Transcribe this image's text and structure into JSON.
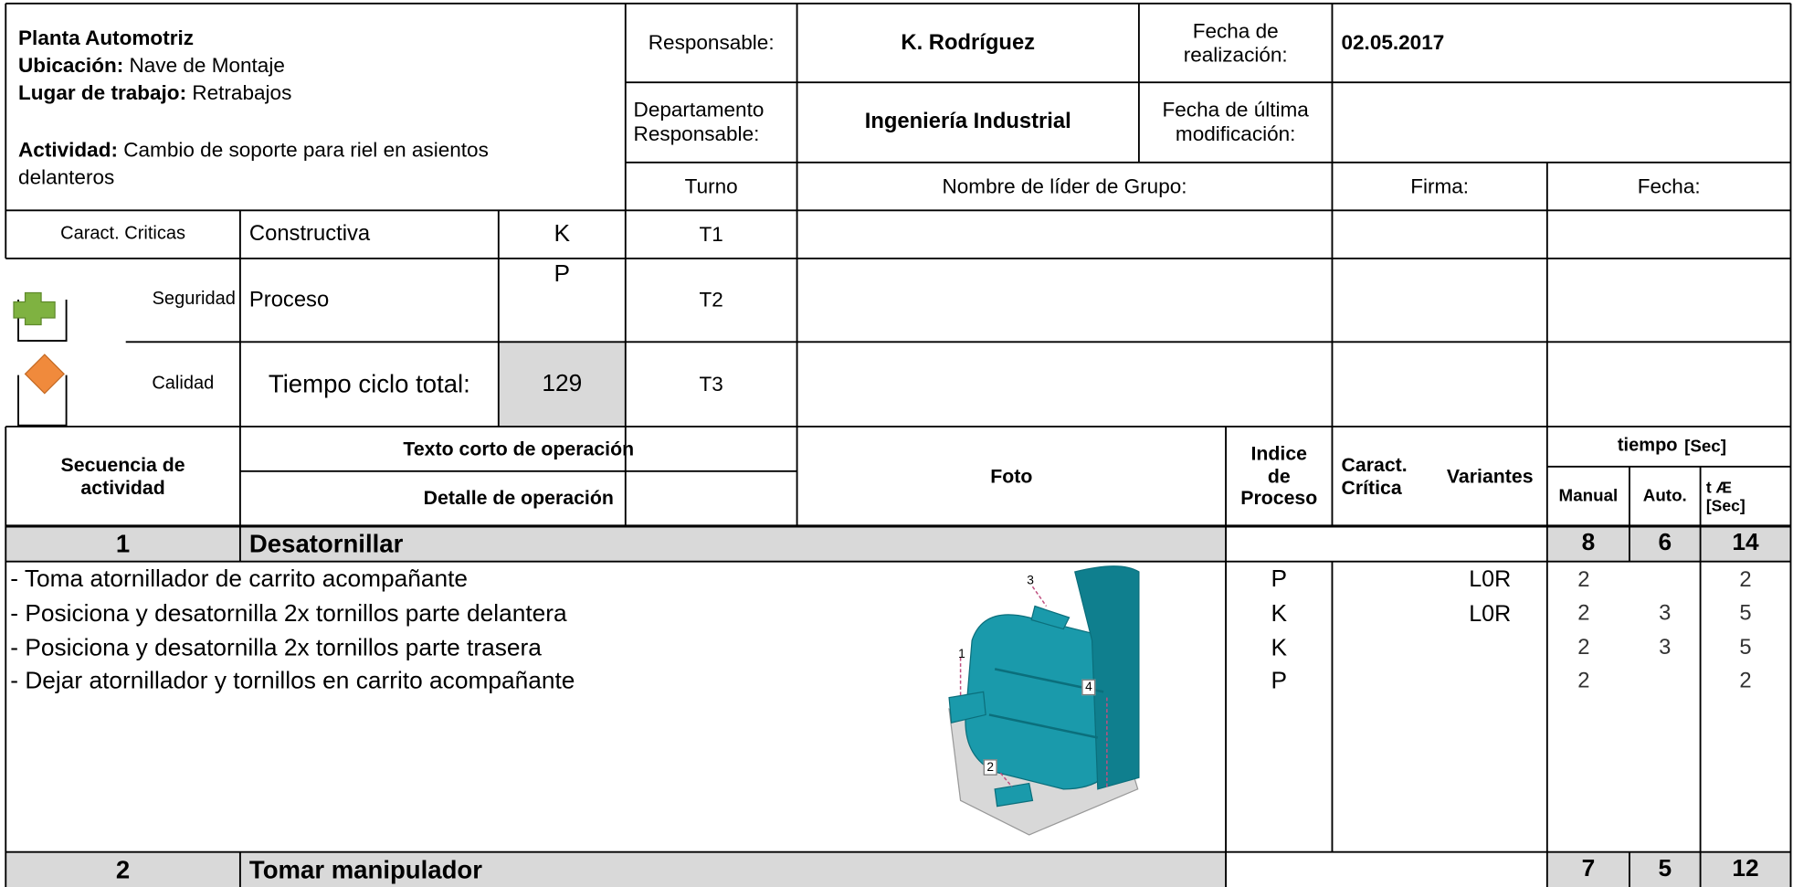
{
  "header": {
    "plant": "Planta Automotriz",
    "location_label": "Ubicación:",
    "location": "Nave de Montaje",
    "workplace_label": "Lugar de trabajo:",
    "workplace": "Retrabajos",
    "activity_label": "Actividad:",
    "activity": "Cambio de soporte para riel en asientos delanteros",
    "responsible_label": "Responsable:",
    "responsible": "K. Rodríguez",
    "date_label": [
      "Fecha de",
      "realización:"
    ],
    "date": "02.05.2017",
    "department_label": [
      "Departamento",
      "Responsable:"
    ],
    "department": "Ingeniería Industrial",
    "modified_label": [
      "Fecha de última",
      "modificación:"
    ],
    "shift_label": "Turno",
    "leader_label": "Nombre de líder de Grupo:",
    "signature_label": "Firma:",
    "sign_date_label": "Fecha:"
  },
  "criteria": [
    {
      "label": "Caract. Criticas",
      "type": "Constructiva",
      "code": "K",
      "shift": "T1"
    },
    {
      "label": "Seguridad",
      "type": "Proceso",
      "code": "P",
      "shift": "T2"
    },
    {
      "label": "Calidad",
      "type": "Tiempo ciclo total:",
      "code": 129,
      "shift": "T3"
    }
  ],
  "columns": {
    "sequence": [
      "Secuencia de",
      "actividad"
    ],
    "short_text": "Texto corto de operación",
    "detail": "Detalle de operación",
    "photo": "Foto",
    "index": [
      "Indice",
      "de",
      "Proceso"
    ],
    "critical": [
      "Caract.",
      "Crítica"
    ],
    "variants": "Variantes",
    "time": "tiempo",
    "time_unit": "[Sec]",
    "manual": "Manual",
    "auto": "Auto.",
    "total": [
      "t Æ",
      "[Sec]"
    ]
  },
  "photo_callouts": [
    "1",
    "2",
    "3",
    "4"
  ],
  "steps": [
    {
      "number": 1,
      "title": "Desatornillar",
      "manual": 8,
      "auto": 6,
      "total": 14,
      "details": [
        {
          "text": "- Toma atornillador de carrito acompañante",
          "index": "P",
          "variant": "L0R",
          "manual": 2,
          "total": 2
        },
        {
          "text": "- Posiciona y desatornilla 2x tornillos parte delantera",
          "index": "K",
          "variant": "L0R",
          "manual": 2,
          "auto": 3,
          "total": 5
        },
        {
          "text": "- Posiciona y desatornilla 2x tornillos parte trasera",
          "index": "K",
          "manual": 2,
          "auto": 3,
          "total": 5
        },
        {
          "text": "- Dejar atornillador y tornillos en carrito acompañante",
          "index": "P",
          "manual": 2,
          "total": 2
        }
      ]
    },
    {
      "number": 2,
      "title": "Tomar manipulador",
      "manual": 7,
      "auto": 5,
      "total": 12
    }
  ]
}
